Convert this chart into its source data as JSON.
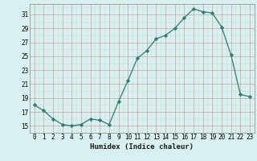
{
  "x": [
    0,
    1,
    2,
    3,
    4,
    5,
    6,
    7,
    8,
    9,
    10,
    11,
    12,
    13,
    14,
    15,
    16,
    17,
    18,
    19,
    20,
    21,
    22,
    23
  ],
  "y": [
    18.0,
    17.2,
    16.0,
    15.2,
    15.0,
    15.2,
    16.0,
    15.8,
    15.2,
    18.5,
    21.5,
    24.7,
    25.8,
    27.5,
    28.0,
    29.0,
    30.5,
    31.8,
    31.4,
    31.2,
    29.2,
    25.2,
    19.5,
    19.2
  ],
  "line_color": "#2e7d6e",
  "marker": "D",
  "marker_size": 2.2,
  "bg_color": "#d8f0f0",
  "grid_major_color": "#c8a0a0",
  "grid_minor_color": "#d0d8d8",
  "xlabel": "Humidex (Indice chaleur)",
  "ylabel_ticks": [
    15,
    17,
    19,
    21,
    23,
    25,
    27,
    29,
    31
  ],
  "xtick_labels": [
    "0",
    "1",
    "2",
    "3",
    "4",
    "5",
    "6",
    "7",
    "8",
    "9",
    "10",
    "11",
    "12",
    "13",
    "14",
    "15",
    "16",
    "17",
    "18",
    "19",
    "20",
    "21",
    "22",
    "23"
  ],
  "ylim": [
    14.0,
    32.5
  ],
  "xlim": [
    -0.5,
    23.5
  ],
  "tick_fontsize": 5.5,
  "xlabel_fontsize": 6.5
}
